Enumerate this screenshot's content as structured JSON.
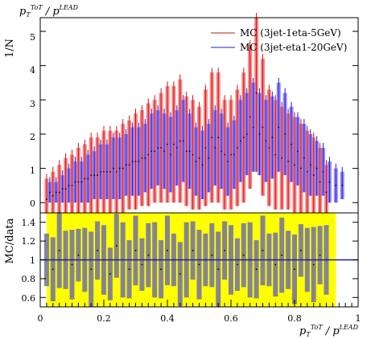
{
  "chart_data": [
    {
      "type": "line",
      "title_top_left": "pT^ToT / pT^LEAD",
      "ylabel": "1/N",
      "xlim": [
        0,
        1
      ],
      "ylim": [
        -0.3,
        5.4
      ],
      "y_ticks": [
        0,
        1,
        2,
        3,
        4,
        5
      ],
      "legend_position": "top-right",
      "series": [
        {
          "name": "MC (3jet-1eta-5GeV)",
          "color": "#ff5a5a",
          "line_color": "#c01818",
          "x": [
            0.02,
            0.04,
            0.06,
            0.08,
            0.1,
            0.12,
            0.14,
            0.16,
            0.18,
            0.2,
            0.22,
            0.24,
            0.26,
            0.28,
            0.3,
            0.32,
            0.34,
            0.36,
            0.38,
            0.4,
            0.42,
            0.44,
            0.46,
            0.48,
            0.5,
            0.52,
            0.54,
            0.56,
            0.58,
            0.6,
            0.62,
            0.64,
            0.66,
            0.68,
            0.7,
            0.72,
            0.74,
            0.76,
            0.78,
            0.8,
            0.82,
            0.84,
            0.86,
            0.88,
            0.9
          ],
          "values": [
            0.1,
            0.2,
            0.3,
            0.4,
            0.5,
            0.6,
            0.7,
            0.8,
            0.8,
            0.9,
            0.9,
            0.9,
            1.0,
            1.1,
            1.2,
            1.3,
            1.4,
            1.5,
            1.6,
            1.7,
            1.7,
            1.8,
            1.5,
            1.4,
            1.3,
            1.6,
            1.9,
            1.9,
            1.4,
            1.4,
            1.6,
            1.9,
            2.5,
            3.2,
            2.2,
            1.6,
            1.4,
            1.3,
            1.2,
            1.1,
            1.0,
            0.9,
            0.8,
            0.6,
            0.3
          ],
          "errors": [
            0.6,
            0.7,
            0.8,
            0.9,
            0.9,
            1.0,
            1.0,
            1.1,
            1.1,
            1.2,
            1.2,
            1.2,
            1.3,
            1.3,
            1.4,
            1.4,
            1.5,
            1.5,
            1.6,
            1.7,
            1.7,
            1.8,
            1.6,
            1.6,
            1.5,
            1.7,
            1.9,
            1.9,
            1.6,
            1.6,
            1.7,
            1.9,
            2.1,
            2.3,
            2.0,
            1.7,
            1.6,
            1.5,
            1.4,
            1.4,
            1.3,
            1.2,
            1.1,
            1.0,
            0.8
          ]
        },
        {
          "name": "MC (3jet-eta1-20GeV)",
          "color": "#7060ff",
          "line_color": "#2020c8",
          "x": [
            0.03,
            0.05,
            0.07,
            0.09,
            0.11,
            0.13,
            0.15,
            0.17,
            0.19,
            0.21,
            0.23,
            0.25,
            0.27,
            0.29,
            0.31,
            0.33,
            0.35,
            0.37,
            0.39,
            0.41,
            0.43,
            0.45,
            0.47,
            0.49,
            0.51,
            0.53,
            0.55,
            0.57,
            0.59,
            0.61,
            0.63,
            0.65,
            0.67,
            0.69,
            0.71,
            0.73,
            0.75,
            0.77,
            0.79,
            0.81,
            0.83,
            0.85,
            0.87,
            0.89,
            0.91,
            0.93,
            0.95
          ],
          "values": [
            0.3,
            0.3,
            0.4,
            0.5,
            0.6,
            0.6,
            0.7,
            0.8,
            0.9,
            0.9,
            1.0,
            1.0,
            1.1,
            1.2,
            1.2,
            1.3,
            1.5,
            1.6,
            1.5,
            1.4,
            1.6,
            1.8,
            1.5,
            1.2,
            1.1,
            1.3,
            1.6,
            1.5,
            1.2,
            1.4,
            1.8,
            2.0,
            2.2,
            2.0,
            1.8,
            1.9,
            2.2,
            2.0,
            1.7,
            1.5,
            1.3,
            1.1,
            1.0,
            0.9,
            0.6,
            0.5,
            0.5
          ],
          "errors": [
            0.3,
            0.3,
            0.4,
            0.5,
            0.6,
            0.6,
            0.7,
            0.7,
            0.8,
            0.8,
            0.9,
            0.9,
            0.9,
            1.0,
            1.0,
            1.0,
            1.1,
            1.1,
            1.1,
            1.1,
            1.1,
            1.2,
            1.1,
            1.0,
            1.0,
            1.0,
            1.1,
            1.1,
            1.0,
            1.0,
            1.2,
            1.2,
            1.3,
            1.2,
            1.2,
            1.2,
            1.3,
            1.2,
            1.1,
            1.0,
            1.0,
            0.9,
            0.8,
            0.7,
            0.6,
            0.5,
            0.4
          ]
        }
      ]
    },
    {
      "type": "bar",
      "ylabel": "MC/data",
      "xlabel": "pT^ToT / pT^LEAD",
      "xlim": [
        0,
        1
      ],
      "ylim": [
        0.5,
        1.5
      ],
      "y_ticks": [
        0.6,
        0.8,
        1,
        1.2,
        1.4
      ],
      "x_ticks": [
        0,
        0.2,
        0.4,
        0.6,
        0.8,
        1
      ],
      "reference_line": 1,
      "band_color": "#ffff00",
      "bar_color": "#7878a0",
      "x": [
        0.02,
        0.04,
        0.06,
        0.08,
        0.1,
        0.12,
        0.14,
        0.16,
        0.18,
        0.2,
        0.22,
        0.24,
        0.26,
        0.28,
        0.3,
        0.32,
        0.34,
        0.36,
        0.38,
        0.4,
        0.42,
        0.44,
        0.46,
        0.48,
        0.5,
        0.52,
        0.54,
        0.56,
        0.58,
        0.6,
        0.62,
        0.64,
        0.66,
        0.68,
        0.7,
        0.72,
        0.74,
        0.76,
        0.78,
        0.8,
        0.82,
        0.84,
        0.86,
        0.88,
        0.9
      ],
      "values": [
        1.0,
        0.9,
        1.1,
        1.0,
        0.95,
        1.05,
        1.0,
        0.9,
        1.1,
        1.0,
        0.85,
        1.15,
        1.0,
        0.9,
        1.1,
        0.95,
        1.05,
        1.0,
        0.9,
        1.1,
        1.0,
        0.85,
        1.0,
        1.1,
        0.95,
        1.0,
        1.05,
        0.9,
        1.1,
        1.0,
        0.95,
        1.05,
        1.0,
        0.9,
        1.1,
        1.0,
        0.95,
        1.05,
        1.0,
        0.9,
        1.1,
        1.0,
        0.95,
        1.05,
        1.0
      ]
    }
  ],
  "labels": {
    "top_left_p": "p",
    "top_left_sub": "T",
    "top_left_sup": "ToT",
    "top_left_sep": " / p",
    "top_left_sup2": "LEAD",
    "ylabel_top": "1/N",
    "ylabel_bottom": "MC/data",
    "xlabel_p": "p",
    "xlabel_sub": "T",
    "xlabel_sup": "ToT",
    "xlabel_sep": " / p",
    "xlabel_sup2": "LEAD",
    "legend_1": "MC (3jet-1eta-5GeV)",
    "legend_2": "MC (3jet-eta1-20GeV)",
    "xtick_0": "0",
    "xtick_1": "0.2",
    "xtick_2": "0.4",
    "xtick_3": "0.6",
    "xtick_4": "0.8",
    "xtick_5": "1",
    "ytop_0": "0",
    "ytop_1": "1",
    "ytop_2": "2",
    "ytop_3": "3",
    "ytop_4": "4",
    "ytop_5": "5",
    "ybot_0": "0.6",
    "ybot_1": "0.8",
    "ybot_2": "1",
    "ybot_3": "1.2",
    "ybot_4": "1.4"
  }
}
